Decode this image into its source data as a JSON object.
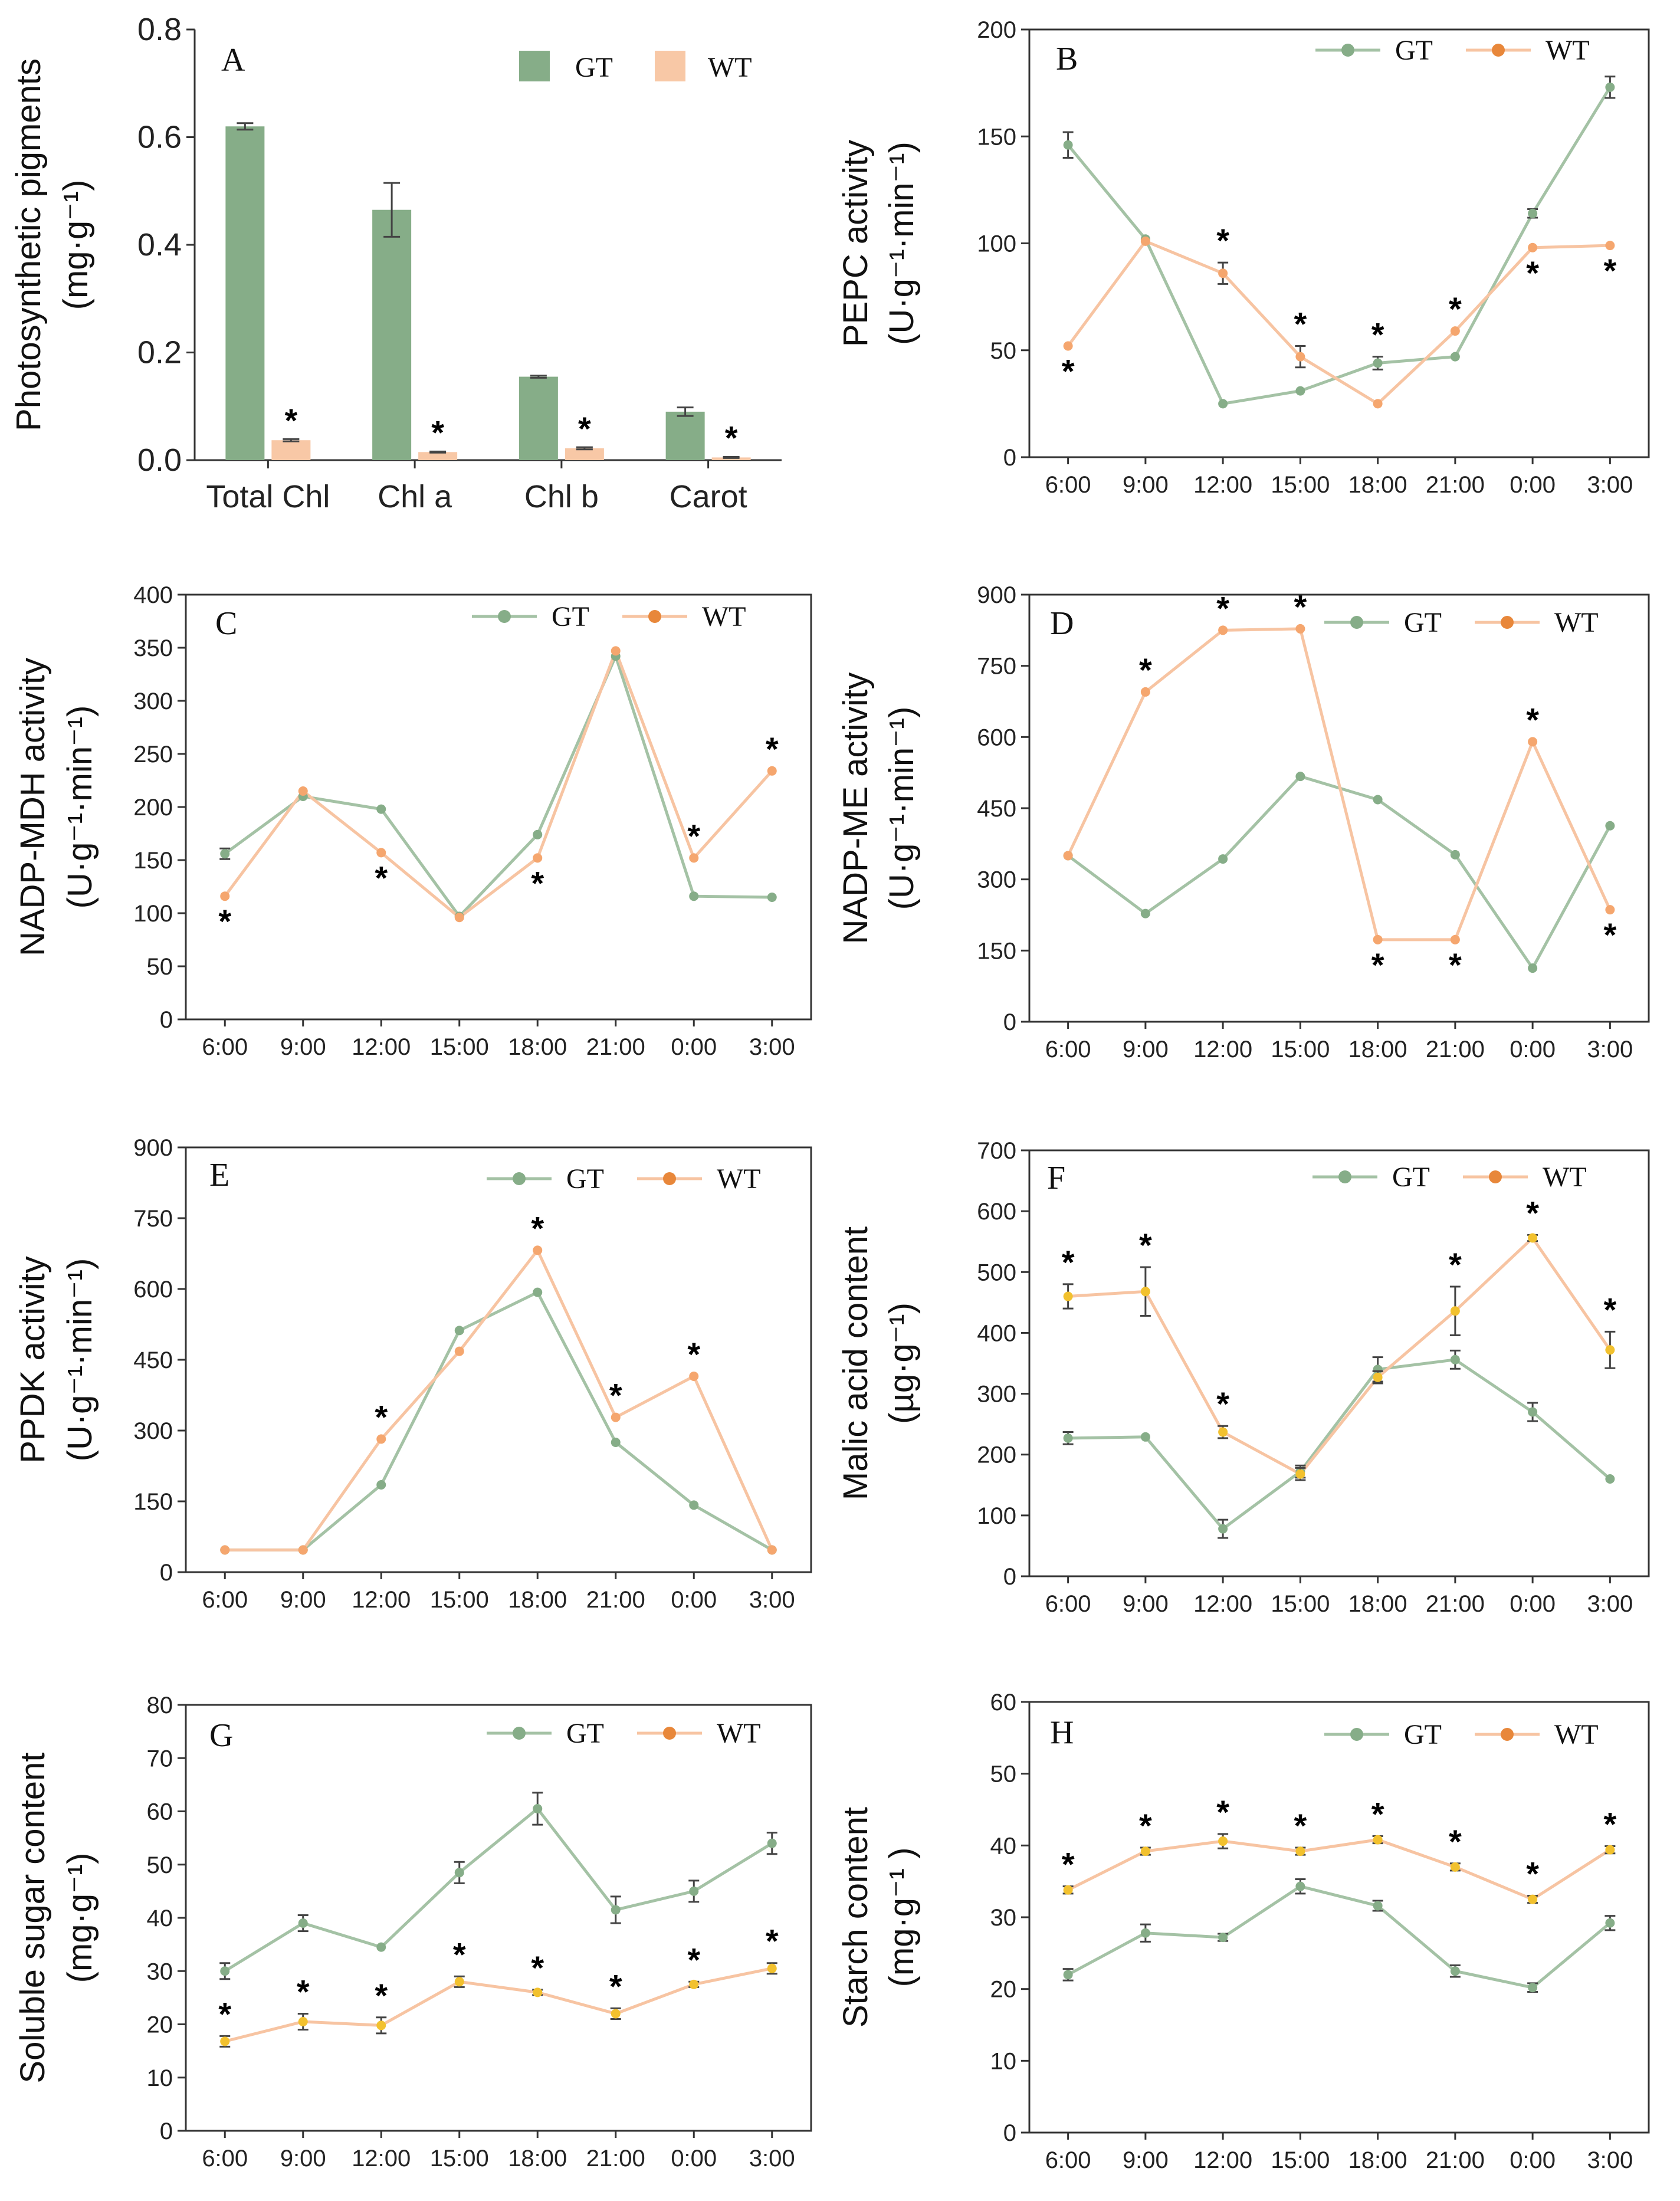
{
  "colors": {
    "gt_bar": "#86ad88",
    "wt_bar": "#f8c8a6",
    "gt_line": "#a4c2a5",
    "wt_line": "#f7c4a2",
    "gt_marker": "#86ad88",
    "wt_marker": "#f5a66e",
    "wt_marker_alt": "#f2c12e",
    "legend_wt_dot": "#e8873a",
    "legend_gt_dot": "#86ad88"
  },
  "chart_data": [
    {
      "id": "A",
      "type": "bar",
      "panel_label": "A",
      "ylabel_line1": "Photosynthetic pigments",
      "ylabel_line2": "(mg·g⁻¹)",
      "categories": [
        "Total Chl",
        "Chl a",
        "Chl b",
        "Carot"
      ],
      "ylim": [
        0,
        0.8
      ],
      "yticks": [
        "0.0",
        "0.2",
        "0.4",
        "0.6",
        "0.8"
      ],
      "series": [
        {
          "name": "GT",
          "values": [
            0.62,
            0.465,
            0.155,
            0.09
          ],
          "errors": [
            0.006,
            0.05,
            0.002,
            0.008
          ]
        },
        {
          "name": "WT",
          "values": [
            0.037,
            0.015,
            0.022,
            0.005
          ],
          "errors": [
            0.002,
            0.001,
            0.002,
            0.001
          ]
        }
      ],
      "significance": [
        "*",
        "*",
        "*",
        "*"
      ],
      "legend": [
        "GT",
        "WT"
      ]
    },
    {
      "id": "B",
      "type": "line",
      "panel_label": "B",
      "ylabel_line1": "PEPC activity",
      "ylabel_line2": "(U·g⁻¹·min⁻¹)",
      "categories": [
        "6:00",
        "9:00",
        "12:00",
        "15:00",
        "18:00",
        "21:00",
        "0:00",
        "3:00"
      ],
      "ylim": [
        0,
        200
      ],
      "yticks": [
        "0",
        "50",
        "100",
        "150",
        "200"
      ],
      "series": [
        {
          "name": "GT",
          "values": [
            146,
            102,
            25,
            31,
            44,
            47,
            114,
            173
          ],
          "errors": [
            6,
            0,
            0,
            0,
            3,
            0,
            2,
            5
          ]
        },
        {
          "name": "WT",
          "values": [
            52,
            101,
            86,
            47,
            25,
            59,
            98,
            99
          ],
          "errors": [
            0,
            0,
            5,
            5,
            0,
            0,
            0,
            0
          ]
        }
      ],
      "significance": [
        "*",
        "",
        "*",
        "*",
        "*",
        "*",
        "*",
        "*"
      ],
      "star_pos": [
        "below",
        "",
        "above",
        "above",
        "above",
        "above",
        "below",
        "below"
      ],
      "legend": [
        "GT",
        "WT"
      ]
    },
    {
      "id": "C",
      "type": "line",
      "panel_label": "C",
      "ylabel_line1": "NADP-MDH activity",
      "ylabel_line2": "(U·g⁻¹·min⁻¹)",
      "categories": [
        "6:00",
        "9:00",
        "12:00",
        "15:00",
        "18:00",
        "21:00",
        "0:00",
        "3:00"
      ],
      "ylim": [
        0,
        400
      ],
      "yticks": [
        "0",
        "50",
        "100",
        "150",
        "200",
        "250",
        "300",
        "350",
        "400"
      ],
      "series": [
        {
          "name": "GT",
          "values": [
            156,
            210,
            198,
            97,
            174,
            342,
            116,
            115
          ],
          "errors": [
            5,
            0,
            0,
            0,
            0,
            0,
            0,
            0
          ]
        },
        {
          "name": "WT",
          "values": [
            116,
            215,
            157,
            96,
            152,
            347,
            152,
            234
          ],
          "errors": [
            0,
            0,
            0,
            0,
            0,
            0,
            0,
            0
          ]
        }
      ],
      "significance": [
        "*",
        "",
        "*",
        "",
        "*",
        "",
        "*",
        "*"
      ],
      "star_pos": [
        "below",
        "",
        "below",
        "",
        "below",
        "",
        "above",
        "above"
      ],
      "legend": [
        "GT",
        "WT"
      ]
    },
    {
      "id": "D",
      "type": "line",
      "panel_label": "D",
      "ylabel_line1": "NADP-ME activity",
      "ylabel_line2": "(U·g⁻¹·min⁻¹)",
      "categories": [
        "6:00",
        "9:00",
        "12:00",
        "15:00",
        "18:00",
        "21:00",
        "0:00",
        "3:00"
      ],
      "ylim": [
        0,
        900
      ],
      "yticks": [
        "0",
        "150",
        "300",
        "450",
        "600",
        "750",
        "900"
      ],
      "series": [
        {
          "name": "GT",
          "values": [
            350,
            228,
            343,
            517,
            468,
            352,
            113,
            413
          ],
          "errors": [
            0,
            0,
            0,
            0,
            0,
            0,
            0,
            0
          ]
        },
        {
          "name": "WT",
          "values": [
            350,
            695,
            825,
            828,
            173,
            173,
            590,
            236
          ],
          "errors": [
            0,
            0,
            0,
            0,
            0,
            0,
            0,
            0
          ]
        }
      ],
      "significance": [
        "",
        "*",
        "*",
        "*",
        "*",
        "*",
        "*",
        "*"
      ],
      "star_pos": [
        "",
        "above",
        "above",
        "above",
        "below",
        "below",
        "above",
        "below"
      ],
      "legend": [
        "GT",
        "WT"
      ]
    },
    {
      "id": "E",
      "type": "line",
      "panel_label": "E",
      "ylabel_line1": "PPDK activity",
      "ylabel_line2": "(U·g⁻¹·min⁻¹)",
      "categories": [
        "6:00",
        "9:00",
        "12:00",
        "15:00",
        "18:00",
        "21:00",
        "0:00",
        "3:00"
      ],
      "ylim": [
        0,
        900
      ],
      "yticks": [
        "0",
        "150",
        "300",
        "450",
        "600",
        "750",
        "900"
      ],
      "series": [
        {
          "name": "GT",
          "values": [
            47,
            47,
            185,
            512,
            593,
            275,
            142,
            47
          ],
          "errors": [
            0,
            0,
            0,
            0,
            0,
            0,
            0,
            0
          ]
        },
        {
          "name": "WT",
          "values": [
            47,
            47,
            282,
            468,
            682,
            328,
            415,
            47
          ],
          "errors": [
            0,
            0,
            0,
            0,
            0,
            0,
            0,
            0
          ]
        }
      ],
      "significance": [
        "",
        "",
        "*",
        "",
        "*",
        "*",
        "*",
        ""
      ],
      "star_pos": [
        "",
        "",
        "above",
        "",
        "above",
        "above",
        "above",
        ""
      ],
      "legend": [
        "GT",
        "WT"
      ]
    },
    {
      "id": "F",
      "type": "line",
      "panel_label": "F",
      "ylabel_line1": "Malic acid content",
      "ylabel_line2": "(µg·g⁻¹)",
      "categories": [
        "6:00",
        "9:00",
        "12:00",
        "15:00",
        "18:00",
        "21:00",
        "0:00",
        "3:00"
      ],
      "ylim": [
        0,
        700
      ],
      "yticks": [
        "0",
        "100",
        "200",
        "300",
        "400",
        "500",
        "600",
        "700"
      ],
      "series": [
        {
          "name": "GT",
          "values": [
            227,
            229,
            78,
            172,
            340,
            356,
            270,
            160
          ],
          "errors": [
            10,
            0,
            15,
            10,
            20,
            15,
            15,
            0
          ]
        },
        {
          "name": "WT",
          "values": [
            460,
            468,
            237,
            168,
            327,
            436,
            556,
            372
          ],
          "errors": [
            20,
            40,
            10,
            10,
            10,
            40,
            5,
            30
          ]
        }
      ],
      "significance": [
        "*",
        "*",
        "*",
        "",
        "",
        "*",
        "*",
        "*"
      ],
      "star_pos": [
        "above",
        "above",
        "above",
        "",
        "",
        "above",
        "above",
        "above"
      ],
      "legend": [
        "GT",
        "WT"
      ]
    },
    {
      "id": "G",
      "type": "line",
      "panel_label": "G",
      "ylabel_line1": "Soluble sugar content",
      "ylabel_line2": "(mg·g⁻¹)",
      "categories": [
        "6:00",
        "9:00",
        "12:00",
        "15:00",
        "18:00",
        "21:00",
        "0:00",
        "3:00"
      ],
      "ylim": [
        0,
        80
      ],
      "yticks": [
        "0",
        "10",
        "20",
        "30",
        "40",
        "50",
        "60",
        "70",
        "80"
      ],
      "series": [
        {
          "name": "GT",
          "values": [
            30,
            39,
            34.5,
            48.5,
            60.5,
            41.5,
            45,
            54
          ],
          "errors": [
            1.5,
            1.5,
            0,
            2,
            3,
            2.5,
            2,
            2
          ]
        },
        {
          "name": "WT",
          "values": [
            16.8,
            20.5,
            19.8,
            28,
            26,
            22,
            27.5,
            30.5
          ],
          "errors": [
            1,
            1.5,
            1.5,
            1,
            0.5,
            1,
            0.5,
            1
          ]
        }
      ],
      "significance": [
        "*",
        "*",
        "*",
        "*",
        "*",
        "*",
        "*",
        "*"
      ],
      "star_pos": [
        "above",
        "above",
        "above",
        "above",
        "above",
        "above",
        "above",
        "above"
      ],
      "legend": [
        "GT",
        "WT"
      ]
    },
    {
      "id": "H",
      "type": "line",
      "panel_label": "H",
      "ylabel_line1": "Starch content",
      "ylabel_line2": "(mg·g⁻¹ )",
      "categories": [
        "6:00",
        "9:00",
        "12:00",
        "15:00",
        "18:00",
        "21:00",
        "0:00",
        "3:00"
      ],
      "ylim": [
        0,
        60
      ],
      "yticks": [
        "0",
        "10",
        "20",
        "30",
        "40",
        "50",
        "60"
      ],
      "series": [
        {
          "name": "GT",
          "values": [
            22,
            27.8,
            27.2,
            34.3,
            31.6,
            22.5,
            20.2,
            29.2
          ],
          "errors": [
            0.8,
            1.2,
            0.5,
            1,
            0.7,
            0.8,
            0.6,
            1
          ]
        },
        {
          "name": "WT",
          "values": [
            33.8,
            39.2,
            40.6,
            39.2,
            40.8,
            37,
            32.5,
            39.4
          ],
          "errors": [
            0.5,
            0.5,
            1,
            0.5,
            0.5,
            0.5,
            0.5,
            0.5
          ]
        }
      ],
      "significance": [
        "*",
        "*",
        "*",
        "*",
        "*",
        "*",
        "*",
        "*"
      ],
      "star_pos": [
        "above",
        "above",
        "above",
        "above",
        "above",
        "above",
        "above",
        "above"
      ],
      "legend": [
        "GT",
        "WT"
      ]
    }
  ]
}
